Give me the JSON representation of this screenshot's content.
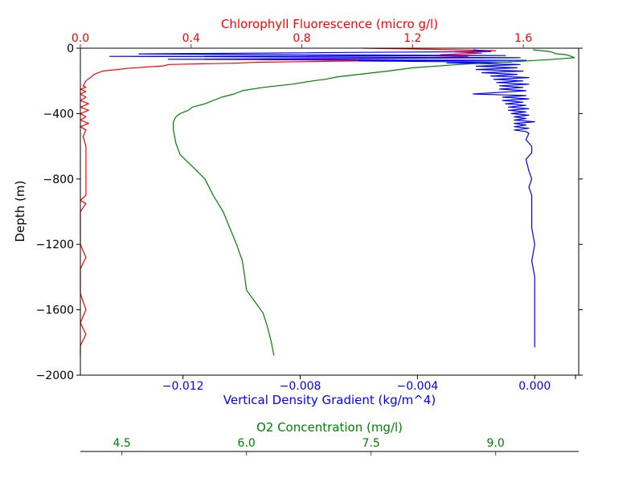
{
  "chart_data": {
    "type": "line",
    "title": "",
    "grid": false,
    "ylabel": "Depth (m)",
    "ylim": [
      -2000,
      0
    ],
    "yticks": [
      0,
      -400,
      -800,
      -1200,
      -1600,
      -2000
    ],
    "ytick_labels": [
      "0",
      "−400",
      "−800",
      "−1200",
      "−1600",
      "−2000"
    ],
    "axes": {
      "bottom": {
        "label": "Vertical Density Gradient (kg/m^4)",
        "color": "#0000ff",
        "lim": [
          -0.0155,
          0.0015
        ],
        "ticks": [
          -0.012,
          -0.008,
          -0.004,
          0.0
        ],
        "tick_labels": [
          "−0.012",
          "−0.008",
          "−0.004",
          "0.000"
        ]
      },
      "top": {
        "label": "Chlorophyll Fluorescence (micro g/l)",
        "color": "#ff0000",
        "lim": [
          0,
          1.8
        ],
        "ticks": [
          0,
          0.4,
          0.8,
          1.2,
          1.6
        ],
        "tick_labels": [
          "0.0",
          "0.4",
          "0.8",
          "1.2",
          "1.6"
        ]
      },
      "offset": {
        "label": "O2 Concentration (mg/l)",
        "color": "#008000",
        "lim": [
          4.0,
          10.0
        ],
        "ticks": [
          4.5,
          6.0,
          7.5,
          9.0
        ],
        "tick_labels": [
          "4.5",
          "6.0",
          "7.5",
          "9.0"
        ]
      }
    },
    "series": [
      {
        "axis": "top",
        "color": "#ff0000",
        "points": [
          [
            1.02,
            0
          ],
          [
            1.3,
            -8
          ],
          [
            1.5,
            -15
          ],
          [
            1.35,
            -22
          ],
          [
            1.45,
            -30
          ],
          [
            1.3,
            -40
          ],
          [
            1.4,
            -50
          ],
          [
            1.2,
            -60
          ],
          [
            0.65,
            -70
          ],
          [
            1.1,
            -76
          ],
          [
            0.9,
            -80
          ],
          [
            0.64,
            -86
          ],
          [
            0.55,
            -92
          ],
          [
            0.32,
            -100
          ],
          [
            0.3,
            -108
          ],
          [
            0.18,
            -122
          ],
          [
            0.08,
            -140
          ],
          [
            0.05,
            -160
          ],
          [
            0.04,
            -175
          ],
          [
            0.02,
            -200
          ],
          [
            0.01,
            -230
          ],
          [
            0.02,
            -240
          ],
          [
            0.0,
            -250
          ],
          [
            0.02,
            -265
          ],
          [
            0.0,
            -280
          ],
          [
            0.02,
            -300
          ],
          [
            0.0,
            -320
          ],
          [
            0.03,
            -340
          ],
          [
            0.0,
            -360
          ],
          [
            0.03,
            -380
          ],
          [
            0.0,
            -400
          ],
          [
            0.02,
            -420
          ],
          [
            0.0,
            -440
          ],
          [
            0.03,
            -460
          ],
          [
            0.0,
            -480
          ],
          [
            0.02,
            -500
          ],
          [
            0.01,
            -540
          ],
          [
            0.02,
            -600
          ],
          [
            0.02,
            -700
          ],
          [
            0.02,
            -800
          ],
          [
            0.02,
            -900
          ],
          [
            0.0,
            -930
          ],
          [
            0.02,
            -950
          ],
          [
            0.0,
            -1000
          ],
          [
            0.0,
            -1100
          ],
          [
            0.0,
            -1200
          ],
          [
            0.02,
            -1280
          ],
          [
            0.0,
            -1350
          ],
          [
            0.0,
            -1450
          ],
          [
            0.0,
            -1500
          ],
          [
            0.02,
            -1600
          ],
          [
            0.0,
            -1680
          ],
          [
            0.02,
            -1750
          ],
          [
            0.0,
            -1820
          ],
          [
            0.0,
            -1880
          ]
        ]
      },
      {
        "axis": "bottom",
        "color": "#0000ff",
        "points": [
          [
            -0.0021,
            -10
          ],
          [
            -0.0015,
            -20
          ],
          [
            -0.0135,
            -35
          ],
          [
            -0.001,
            -45
          ],
          [
            -0.0145,
            -50
          ],
          [
            -0.0005,
            -58
          ],
          [
            -0.0125,
            -68
          ],
          [
            -0.0003,
            -74
          ],
          [
            -0.006,
            -78
          ],
          [
            -0.0008,
            -85
          ],
          [
            -0.003,
            -90
          ],
          [
            -0.0005,
            -100
          ],
          [
            -0.002,
            -110
          ],
          [
            -0.0006,
            -120
          ],
          [
            -0.002,
            -130
          ],
          [
            -0.0004,
            -140
          ],
          [
            -0.0018,
            -150
          ],
          [
            -0.0006,
            -160
          ],
          [
            -0.0015,
            -170
          ],
          [
            -0.0002,
            -180
          ],
          [
            -0.0014,
            -190
          ],
          [
            -0.0004,
            -200
          ],
          [
            -0.0013,
            -210
          ],
          [
            -0.0002,
            -220
          ],
          [
            -0.0012,
            -230
          ],
          [
            -0.0004,
            -240
          ],
          [
            -0.0012,
            -250
          ],
          [
            -0.0003,
            -260
          ],
          [
            -0.0021,
            -280
          ],
          [
            -0.0003,
            -290
          ],
          [
            -0.0011,
            -300
          ],
          [
            -0.0002,
            -310
          ],
          [
            -0.0011,
            -320
          ],
          [
            -0.0004,
            -330
          ],
          [
            -0.001,
            -340
          ],
          [
            -0.0003,
            -350
          ],
          [
            -0.0009,
            -360
          ],
          [
            -0.0002,
            -370
          ],
          [
            -0.0009,
            -380
          ],
          [
            -0.0003,
            -390
          ],
          [
            -0.0008,
            -400
          ],
          [
            -0.0002,
            -410
          ],
          [
            -0.0007,
            -420
          ],
          [
            -0.0003,
            -430
          ],
          [
            -0.0007,
            -440
          ],
          [
            0.0,
            -450
          ],
          [
            -0.0007,
            -460
          ],
          [
            -0.0003,
            -470
          ],
          [
            -0.0007,
            -480
          ],
          [
            -0.0002,
            -490
          ],
          [
            -0.0007,
            -500
          ],
          [
            -0.0003,
            -510
          ],
          [
            -0.0002,
            -520
          ],
          [
            -0.0003,
            -560
          ],
          [
            -0.0001,
            -600
          ],
          [
            -0.0001,
            -640
          ],
          [
            -0.0003,
            -680
          ],
          [
            -0.0002,
            -750
          ],
          [
            -0.0001,
            -800
          ],
          [
            -0.0002,
            -850
          ],
          [
            -0.0001,
            -900
          ],
          [
            -0.0001,
            -1000
          ],
          [
            -0.0001,
            -1100
          ],
          [
            0.0,
            -1200
          ],
          [
            -0.0001,
            -1300
          ],
          [
            0.0,
            -1400
          ],
          [
            0.0,
            -1500
          ],
          [
            0.0,
            -1600
          ],
          [
            0.0,
            -1700
          ],
          [
            0.0,
            -1830
          ]
        ]
      },
      {
        "axis": "offset",
        "color": "#008000",
        "points": [
          [
            9.45,
            -10
          ],
          [
            9.65,
            -20
          ],
          [
            9.7,
            -28
          ],
          [
            9.72,
            -34
          ],
          [
            9.85,
            -40
          ],
          [
            9.9,
            -48
          ],
          [
            9.95,
            -58
          ],
          [
            9.65,
            -70
          ],
          [
            9.3,
            -80
          ],
          [
            8.55,
            -100
          ],
          [
            8.0,
            -120
          ],
          [
            7.7,
            -140
          ],
          [
            7.35,
            -160
          ],
          [
            7.1,
            -175
          ],
          [
            6.95,
            -190
          ],
          [
            6.8,
            -200
          ],
          [
            6.55,
            -220
          ],
          [
            6.2,
            -240
          ],
          [
            5.95,
            -260
          ],
          [
            5.85,
            -280
          ],
          [
            5.7,
            -300
          ],
          [
            5.5,
            -340
          ],
          [
            5.35,
            -360
          ],
          [
            5.3,
            -380
          ],
          [
            5.2,
            -400
          ],
          [
            5.15,
            -420
          ],
          [
            5.12,
            -450
          ],
          [
            5.12,
            -500
          ],
          [
            5.15,
            -580
          ],
          [
            5.2,
            -650
          ],
          [
            5.3,
            -700
          ],
          [
            5.4,
            -750
          ],
          [
            5.5,
            -800
          ],
          [
            5.6,
            -900
          ],
          [
            5.72,
            -1000
          ],
          [
            5.8,
            -1100
          ],
          [
            5.88,
            -1200
          ],
          [
            5.95,
            -1300
          ],
          [
            5.98,
            -1400
          ],
          [
            6.0,
            -1480
          ],
          [
            6.1,
            -1550
          ],
          [
            6.2,
            -1620
          ],
          [
            6.25,
            -1700
          ],
          [
            6.3,
            -1800
          ],
          [
            6.33,
            -1880
          ]
        ]
      }
    ]
  }
}
